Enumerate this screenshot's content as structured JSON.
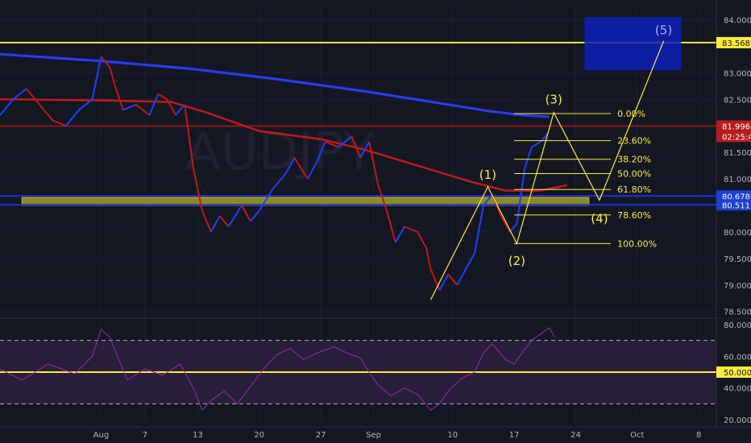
{
  "chart_data": {
    "type": "line",
    "symbol": "AUDJPY",
    "price_scale": {
      "ticks": [
        84.0,
        83.0,
        82.5,
        82.0,
        81.5,
        81.0,
        80.0,
        79.5,
        79.0,
        78.5
      ],
      "tick_labels": [
        "84.000",
        "83.000",
        "82.500",
        "82.000",
        "81.500",
        "81.000",
        "80.000",
        "79.500",
        "79.000",
        "78.500"
      ],
      "ylim": [
        78.42,
        84.25
      ]
    },
    "time_axis": {
      "labels": [
        "Aug",
        "7",
        "13",
        "20",
        "27",
        "Sep",
        "10",
        "17",
        "24",
        "Oct",
        "8"
      ],
      "day_index": [
        0,
        5,
        11,
        18,
        25,
        31,
        40,
        47,
        54,
        61,
        68
      ],
      "xlim": [
        -11.5,
        70
      ]
    },
    "price_tags": [
      {
        "value": 83.568,
        "label": "83.568",
        "color": "#ffeb3b",
        "text_color": "#131722"
      },
      {
        "value": 81.996,
        "label": "81.996",
        "color": "#b71c1c",
        "text_color": "#ffffff"
      },
      {
        "value": 81.8,
        "label": "02:25:40",
        "color": "#b71c1c",
        "text_color": "#ffffff"
      },
      {
        "value": 80.678,
        "label": "80.678",
        "color": "#1e3fd0",
        "text_color": "#ffffff"
      },
      {
        "value": 80.511,
        "label": "80.511",
        "color": "#1e3fd0",
        "text_color": "#ffffff"
      }
    ],
    "horizontal_lines": [
      {
        "value": 83.568,
        "color": "#ffeb3b"
      },
      {
        "value": 81.996,
        "color": "#8b1a1a"
      },
      {
        "value": 80.678,
        "color": "#2030e0"
      },
      {
        "value": 80.511,
        "color": "#2030e0"
      }
    ],
    "support_zone": {
      "x_from": -9,
      "x_to": 55.5,
      "y_from": 80.5,
      "y_to": 80.65
    },
    "target_box": {
      "label": "(5)",
      "x_from": 55,
      "x_to": 66,
      "y_from": 83.05,
      "y_to": 84.05
    },
    "fib_levels": [
      {
        "label": "0.00%",
        "value": 82.23
      },
      {
        "label": "23.60%",
        "value": 81.72
      },
      {
        "label": "38.20%",
        "value": 81.37
      },
      {
        "label": "50.00%",
        "value": 81.1
      },
      {
        "label": "61.80%",
        "value": 80.8
      },
      {
        "label": "78.60%",
        "value": 80.32
      },
      {
        "label": "100.00%",
        "value": 79.78
      }
    ],
    "fib_x_range": [
      47,
      58
    ],
    "waves": [
      {
        "label": "(1)",
        "x": 44,
        "y": 80.85,
        "label_y": 81.08,
        "color": "#ffeb3b"
      },
      {
        "label": "(2)",
        "x": 47.3,
        "y": 79.78,
        "label_y": 79.45,
        "color": "#ffeb3b"
      },
      {
        "label": "(3)",
        "x": 51.5,
        "y": 82.25,
        "label_y": 82.5,
        "color": "#ffeb3b"
      },
      {
        "label": "(4)",
        "x": 56.7,
        "y": 80.6,
        "label_y": 80.25,
        "color": "#ffeb3b"
      },
      {
        "label": "(5)",
        "x": 64,
        "y": 83.6,
        "label_y": 83.8,
        "color": "#aab4ff"
      }
    ],
    "wave_start": {
      "x": 37.5,
      "y": 78.72
    },
    "ma_blue": {
      "color": "#2b3bff",
      "points": [
        [
          -11.5,
          83.35
        ],
        [
          0,
          83.22
        ],
        [
          10,
          83.08
        ],
        [
          20,
          82.88
        ],
        [
          30,
          82.65
        ],
        [
          38,
          82.44
        ],
        [
          44,
          82.28
        ],
        [
          48,
          82.2
        ],
        [
          51,
          82.17
        ]
      ]
    },
    "ma_red": {
      "color": "#c2181f",
      "points": [
        [
          -11.5,
          82.5
        ],
        [
          0,
          82.48
        ],
        [
          8,
          82.45
        ],
        [
          12,
          82.25
        ],
        [
          18,
          81.9
        ],
        [
          25,
          81.75
        ],
        [
          30,
          81.55
        ],
        [
          36,
          81.25
        ],
        [
          42,
          80.95
        ],
        [
          46,
          80.78
        ],
        [
          50,
          80.78
        ],
        [
          53,
          80.88
        ]
      ]
    },
    "price": {
      "color_up": "#1e3fff",
      "color_down": "#c21717",
      "points": [
        [
          -11.5,
          82.2
        ],
        [
          -10,
          82.5
        ],
        [
          -8.5,
          82.7
        ],
        [
          -7,
          82.4
        ],
        [
          -5.5,
          82.1
        ],
        [
          -4,
          82.0
        ],
        [
          -2.5,
          82.3
        ],
        [
          -1,
          82.5
        ],
        [
          0,
          83.3
        ],
        [
          1,
          83.1
        ],
        [
          1.5,
          82.8
        ],
        [
          2.5,
          82.3
        ],
        [
          4,
          82.4
        ],
        [
          5.5,
          82.2
        ],
        [
          6.5,
          82.6
        ],
        [
          7.5,
          82.5
        ],
        [
          8.5,
          82.2
        ],
        [
          9.5,
          82.4
        ],
        [
          10.5,
          81.2
        ],
        [
          11,
          80.8
        ],
        [
          11.5,
          80.4
        ],
        [
          12.5,
          80.0
        ],
        [
          13.5,
          80.3
        ],
        [
          14.5,
          80.1
        ],
        [
          16,
          80.5
        ],
        [
          17,
          80.2
        ],
        [
          18,
          80.4
        ],
        [
          19.5,
          80.8
        ],
        [
          21,
          81.1
        ],
        [
          22,
          81.4
        ],
        [
          23.5,
          81.0
        ],
        [
          24.5,
          81.3
        ],
        [
          25.5,
          81.7
        ],
        [
          27,
          81.6
        ],
        [
          28.5,
          81.8
        ],
        [
          29.5,
          81.4
        ],
        [
          30.5,
          81.7
        ],
        [
          31.5,
          80.9
        ],
        [
          32.5,
          80.4
        ],
        [
          33.5,
          79.8
        ],
        [
          34.5,
          80.1
        ],
        [
          36,
          80.0
        ],
        [
          37,
          79.7
        ],
        [
          37.5,
          79.3
        ],
        [
          38.5,
          78.9
        ],
        [
          39.5,
          79.2
        ],
        [
          40.5,
          79.0
        ],
        [
          41.5,
          79.3
        ],
        [
          42.5,
          79.6
        ],
        [
          43.5,
          80.5
        ],
        [
          44.5,
          80.7
        ],
        [
          45.5,
          80.3
        ],
        [
          46.5,
          80.0
        ],
        [
          47.3,
          80.15
        ],
        [
          48.2,
          81.2
        ],
        [
          49,
          81.6
        ],
        [
          50,
          81.7
        ],
        [
          50.8,
          81.85
        ]
      ]
    },
    "rsi": {
      "ticks": [
        80,
        60,
        50,
        40,
        20
      ],
      "tick_labels": [
        "80.0000",
        "60.0000",
        "50.0000",
        "40.0000",
        "20.0000"
      ],
      "ylim": [
        18,
        82.5
      ],
      "bands": [
        70,
        30
      ],
      "midline": {
        "value": 50,
        "label": "50.0000",
        "color": "#ffeb3b"
      },
      "color": "#9c27b0",
      "points": [
        [
          -11.5,
          52
        ],
        [
          -9,
          45
        ],
        [
          -6,
          55
        ],
        [
          -3,
          49
        ],
        [
          -1,
          60
        ],
        [
          0,
          77
        ],
        [
          1,
          72
        ],
        [
          2,
          58
        ],
        [
          3,
          45
        ],
        [
          5,
          52
        ],
        [
          7,
          48
        ],
        [
          9,
          55
        ],
        [
          10.5,
          40
        ],
        [
          11.5,
          26
        ],
        [
          12.5,
          32
        ],
        [
          14,
          38
        ],
        [
          15.5,
          30
        ],
        [
          17,
          41
        ],
        [
          18.5,
          52
        ],
        [
          20,
          61
        ],
        [
          21.5,
          65
        ],
        [
          23,
          58
        ],
        [
          25,
          63
        ],
        [
          26.5,
          66
        ],
        [
          28,
          62
        ],
        [
          29.5,
          59
        ],
        [
          30.5,
          50
        ],
        [
          31.5,
          42
        ],
        [
          33,
          35
        ],
        [
          34.5,
          40
        ],
        [
          36,
          36
        ],
        [
          37.5,
          26
        ],
        [
          38.5,
          30
        ],
        [
          39.5,
          38
        ],
        [
          41,
          46
        ],
        [
          42.5,
          50
        ],
        [
          43.5,
          62
        ],
        [
          44.5,
          68
        ],
        [
          46,
          58
        ],
        [
          47,
          55
        ],
        [
          48,
          63
        ],
        [
          49,
          70
        ],
        [
          50,
          74
        ],
        [
          51,
          78
        ],
        [
          51.6,
          72
        ]
      ]
    }
  }
}
